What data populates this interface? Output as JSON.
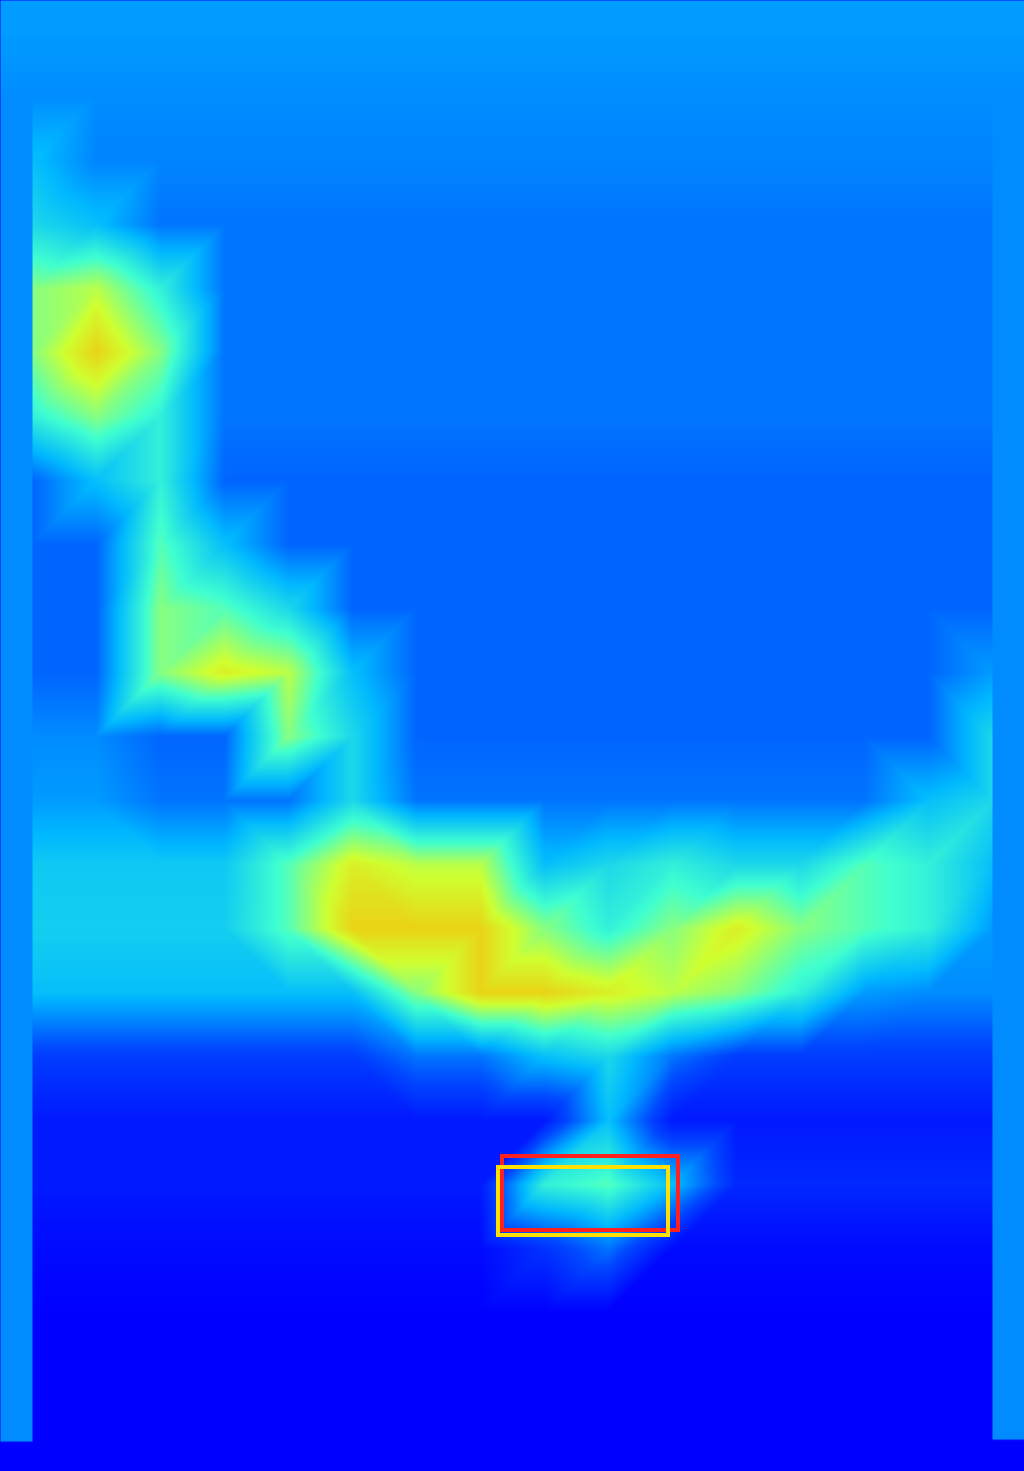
{
  "chart_data": {
    "type": "heatmap",
    "tick_labels": false,
    "xlim": [
      0,
      1024
    ],
    "ylim": [
      1471,
      0
    ],
    "color_range": [
      0,
      10
    ],
    "cells": {
      "x": [
        32,
        96,
        160,
        224,
        288,
        352,
        416,
        480,
        544,
        608,
        672,
        736,
        800,
        864,
        928,
        992
      ],
      "y": [
        32,
        96,
        160,
        224,
        288,
        352,
        416,
        480,
        544,
        608,
        672,
        736,
        800,
        864,
        928,
        992,
        1056,
        1120,
        1184,
        1248,
        1312,
        1376,
        1440
      ],
      "values": [
        [
          2.5,
          2.5,
          2.5,
          2.5,
          2.5,
          2.5,
          2.5,
          2.5,
          2.5,
          2.5,
          2.5,
          2.5,
          2.5,
          2.5,
          2.5,
          2.5
        ],
        [
          2.3,
          2.3,
          2.3,
          2.3,
          2.3,
          2.3,
          2.3,
          2.3,
          2.3,
          2.3,
          2.3,
          2.3,
          2.3,
          2.3,
          2.3,
          2.3
        ],
        [
          3,
          2.2,
          2.2,
          2.2,
          2.2,
          2.2,
          2.2,
          2.2,
          2.2,
          2.2,
          2.2,
          2.2,
          2.2,
          2.2,
          2.2,
          2.2
        ],
        [
          3.5,
          3,
          2,
          2,
          2,
          2,
          2,
          2,
          2,
          2,
          2,
          2,
          2,
          2,
          2,
          2
        ],
        [
          5,
          5.5,
          4,
          2,
          2,
          2,
          2,
          2,
          2,
          2,
          2,
          2,
          2,
          2,
          2,
          2
        ],
        [
          5,
          6.5,
          5,
          2,
          2,
          2,
          2,
          2,
          2,
          2,
          2,
          2,
          2,
          2,
          2,
          2
        ],
        [
          4,
          5,
          4,
          2,
          2,
          2,
          2,
          2,
          2,
          2,
          2,
          2,
          2,
          2,
          2,
          2
        ],
        [
          1.8,
          3,
          4,
          1.8,
          1.8,
          1.8,
          1.8,
          1.8,
          1.8,
          1.8,
          1.8,
          1.8,
          1.8,
          1.8,
          1.8,
          1.8
        ],
        [
          1.8,
          1.8,
          4.5,
          3,
          1.8,
          1.8,
          1.8,
          1.8,
          1.8,
          1.8,
          1.8,
          1.8,
          1.8,
          1.8,
          1.8,
          1.8
        ],
        [
          1.8,
          1.8,
          5,
          4.5,
          3.5,
          1.8,
          1.8,
          1.8,
          1.8,
          1.8,
          1.8,
          1.8,
          1.8,
          1.8,
          1.8,
          1.8
        ],
        [
          1.8,
          1.8,
          5,
          6,
          5.5,
          3,
          1.8,
          1.8,
          1.8,
          1.8,
          1.8,
          1.8,
          1.8,
          1.8,
          1.8,
          2.5
        ],
        [
          2.3,
          2.3,
          1.8,
          1.8,
          5,
          3.5,
          1.8,
          1.8,
          1.8,
          1.8,
          1.8,
          1.8,
          1.8,
          1.8,
          1.8,
          3.5
        ],
        [
          2.5,
          2.5,
          2,
          2,
          2,
          3.5,
          2,
          2,
          2,
          2,
          2,
          2,
          2,
          2,
          3,
          3.5
        ],
        [
          3.2,
          3.2,
          3.2,
          3.2,
          4.5,
          6,
          5.5,
          5.5,
          3,
          3.5,
          4,
          3.5,
          3.5,
          4.5,
          4,
          3
        ],
        [
          3.3,
          3.3,
          3.3,
          3.3,
          4.5,
          6.5,
          6.5,
          6.5,
          5,
          4,
          5,
          6,
          5,
          4.5,
          4,
          2.5
        ],
        [
          3,
          3,
          3,
          3,
          3,
          3,
          5,
          6.5,
          6.5,
          6,
          5.5,
          5,
          4,
          2.5,
          2.3,
          2.3
        ],
        [
          1.2,
          1.2,
          1.2,
          1.2,
          1.2,
          1.2,
          2,
          2,
          3,
          3.5,
          2,
          1.2,
          1.2,
          1.2,
          1.2,
          1.2
        ],
        [
          0.5,
          0.5,
          0.5,
          0.5,
          0.5,
          0.5,
          0.5,
          0.5,
          0.5,
          3,
          0.5,
          0.5,
          0.5,
          0.5,
          0.5,
          0.5
        ],
        [
          0.5,
          0.5,
          0.5,
          0.5,
          0.5,
          0.5,
          0.5,
          0.5,
          4,
          4.5,
          3,
          0.8,
          0.8,
          0.8,
          0.8,
          0.8
        ],
        [
          0.2,
          0.2,
          0.2,
          0.2,
          0.2,
          0.2,
          0.2,
          0.2,
          1,
          2,
          0.2,
          0.2,
          0.2,
          0.2,
          0.2,
          0.2
        ],
        [
          0,
          0,
          0,
          0,
          0,
          0,
          0,
          0,
          0,
          0,
          0,
          0,
          0,
          0,
          0,
          0
        ],
        [
          0,
          0,
          0,
          0,
          0,
          0,
          0,
          0,
          0,
          0,
          0,
          0,
          0,
          0,
          0,
          0
        ],
        [
          0,
          0,
          0,
          0,
          0,
          0,
          0,
          0,
          0,
          0,
          0,
          0,
          0,
          0,
          0,
          0
        ]
      ]
    },
    "boxes": [
      {
        "color": "#ff2020",
        "x": [
          502,
          678
        ],
        "y": [
          1156,
          1230
        ]
      },
      {
        "color": "#ffe000",
        "x": [
          498,
          668
        ],
        "y": [
          1167,
          1235
        ]
      }
    ]
  }
}
